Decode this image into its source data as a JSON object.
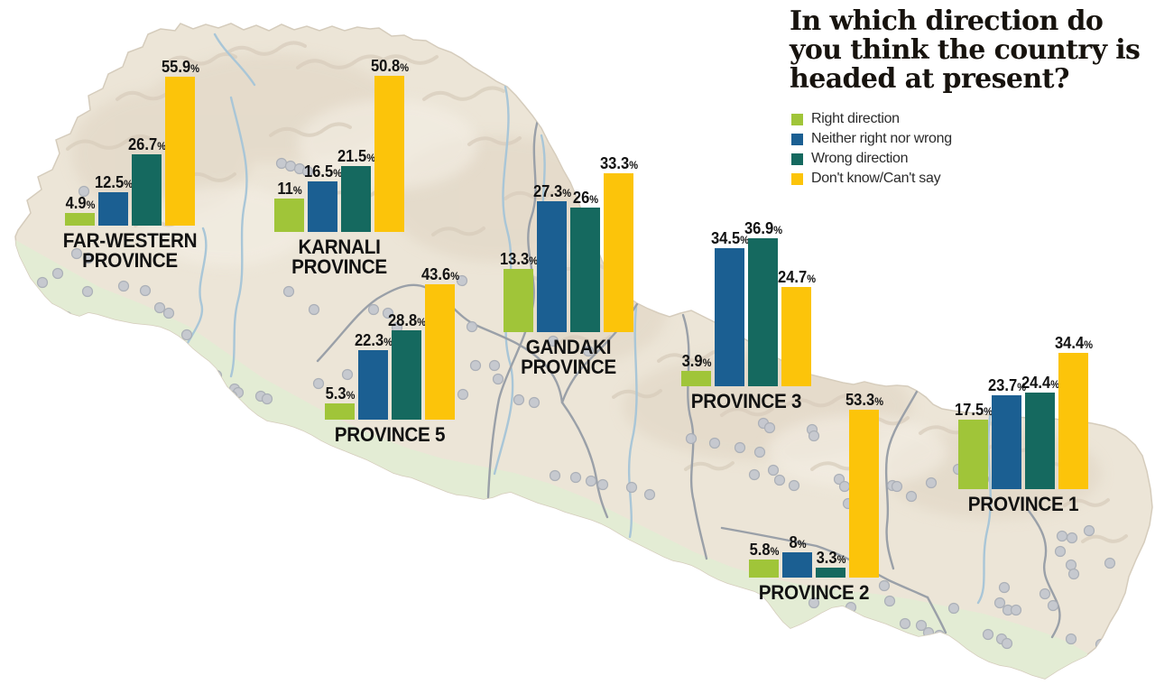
{
  "title": "In which direction do you think the country is headed at present?",
  "units": {
    "percent": "%"
  },
  "chart_data": {
    "type": "bar",
    "title": "In which direction do you think the country is headed at present?",
    "legend_position": "top-right",
    "series_labels": [
      "Right direction",
      "Neither right nor wrong",
      "Wrong direction",
      "Don't know/Can't say"
    ],
    "series_colors": [
      "#a0c539",
      "#1b5f92",
      "#15695f",
      "#fcc40a"
    ],
    "value_unit": "%",
    "provinces": [
      {
        "name": "FAR-WESTERN PROVINCE",
        "name_lines": [
          "FAR-WESTERN",
          "PROVINCE"
        ],
        "values": [
          4.9,
          12.5,
          26.7,
          55.9
        ],
        "values_text": [
          "4.9",
          "12.5",
          "26.7",
          "55.9"
        ]
      },
      {
        "name": "KARNALI PROVINCE",
        "name_lines": [
          "KARNALI",
          "PROVINCE"
        ],
        "values": [
          11,
          16.5,
          21.5,
          50.8
        ],
        "values_text": [
          "11",
          "16.5",
          "21.5",
          "50.8"
        ]
      },
      {
        "name": "PROVINCE 5",
        "name_lines": [
          "PROVINCE 5"
        ],
        "values": [
          5.3,
          22.3,
          28.8,
          43.6
        ],
        "values_text": [
          "5.3",
          "22.3",
          "28.8",
          "43.6"
        ]
      },
      {
        "name": "GANDAKI PROVINCE",
        "name_lines": [
          "GANDAKI",
          "PROVINCE"
        ],
        "values": [
          13.3,
          27.3,
          26,
          33.3
        ],
        "values_text": [
          "13.3",
          "27.3",
          "26",
          "33.3"
        ]
      },
      {
        "name": "PROVINCE 3",
        "name_lines": [
          "PROVINCE 3"
        ],
        "values": [
          3.9,
          34.5,
          36.9,
          24.7
        ],
        "values_text": [
          "3.9",
          "34.5",
          "36.9",
          "24.7"
        ]
      },
      {
        "name": "PROVINCE 2",
        "name_lines": [
          "PROVINCE 2"
        ],
        "values": [
          5.8,
          8,
          3.3,
          53.3
        ],
        "values_text": [
          "5.8",
          "8",
          "3.3",
          "53.3"
        ]
      },
      {
        "name": "PROVINCE 1",
        "name_lines": [
          "PROVINCE 1"
        ],
        "values": [
          17.5,
          23.7,
          24.4,
          34.4
        ],
        "values_text": [
          "17.5",
          "23.7",
          "24.4",
          "34.4"
        ]
      }
    ]
  },
  "map_colors": {
    "terrain": "#ece5d7",
    "terai_plain": "#e3ecd4",
    "ridge_shade": "#d8cdbc",
    "province_border": "#9aa0a8",
    "river": "#a9c6d7",
    "settlement_dot": "#c5c8cf"
  }
}
